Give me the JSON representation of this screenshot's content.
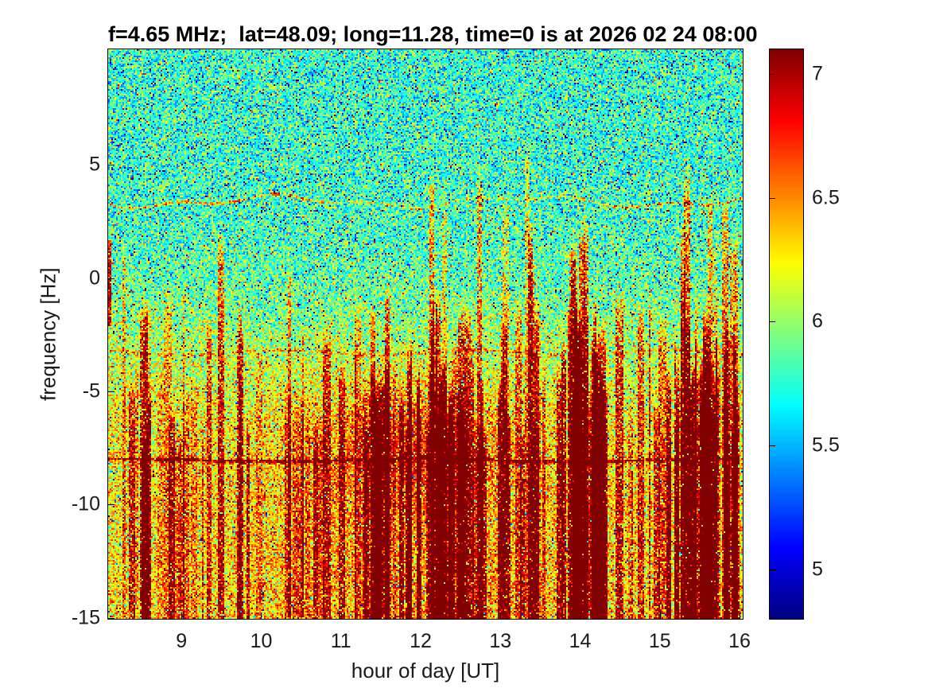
{
  "figure": {
    "title": "f=4.65 MHz;  lat=48.09; long=11.28, time=0 is at 2026 02 24 08:00",
    "xlabel": "hour of day [UT]",
    "ylabel": "frequency [Hz]"
  },
  "chart_data": {
    "type": "heatmap",
    "subtype": "doppler-spectrogram",
    "title": "f=4.65 MHz;  lat=48.09; long=11.28, time=0 is at 2026 02 24 08:00",
    "xlabel": "hour of day [UT]",
    "ylabel": "frequency [Hz]",
    "xlim": [
      8.08,
      16.04
    ],
    "ylim": [
      -15.05,
      10.1
    ],
    "x_ticks": [
      9,
      10,
      11,
      12,
      13,
      14,
      15,
      16
    ],
    "y_ticks": [
      5,
      0,
      -5,
      -10,
      -15
    ],
    "grid": false,
    "colorbar": {
      "position": "right",
      "colormap": "jet",
      "clim": [
        4.8,
        7.1
      ],
      "ticks": [
        7,
        6.5,
        6,
        5.5,
        5
      ]
    },
    "signal": {
      "background_level_above_0Hz": 5.8,
      "background_level_below_minus5Hz": 6.25,
      "noise_std": 0.3,
      "horizontal_lines_hz": [
        {
          "freq": 3.4,
          "strength": "moderate, wavy"
        },
        {
          "freq": -3.3,
          "strength": "faint"
        },
        {
          "freq": -8.05,
          "strength": "strong dark red"
        }
      ],
      "left_edge_feature": {
        "hour": 8.1,
        "freq_range": [
          -2,
          1.7
        ],
        "strength": "strong red"
      },
      "vertical_streaks": {
        "extent": "mostly below 0 Hz up from -15 Hz",
        "dense_clusters_ut": [
          11.5,
          12.0,
          12.6,
          14.05,
          14.5,
          15.6
        ],
        "broad_red_blob": {
          "hour_center": 11.8,
          "freq_center": -7.5,
          "level": 6.6
        }
      }
    }
  }
}
